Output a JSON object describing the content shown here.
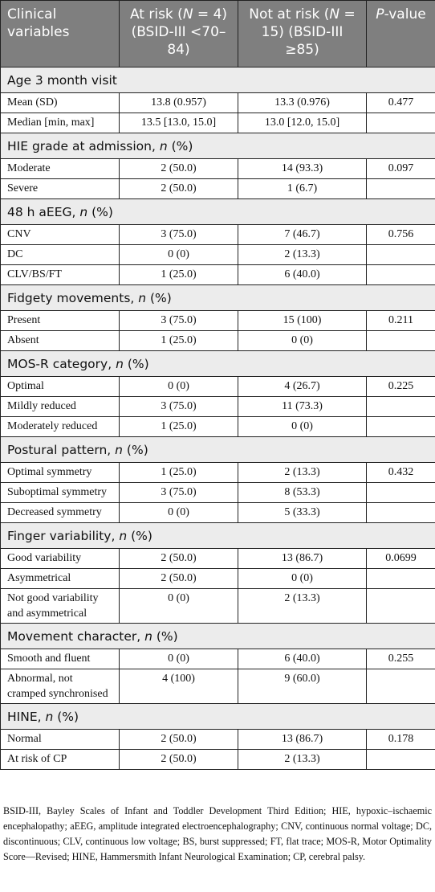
{
  "header": {
    "col1": "Clinical variables",
    "col2_pre": "At risk (",
    "col2_n": "N",
    "col2_post": " = 4) (BSID-III <70–84)",
    "col3_pre": "Not at risk (",
    "col3_n": "N",
    "col3_post": " = 15) (BSID-III ≥85)",
    "col4_p": "P",
    "col4_post": "-value"
  },
  "sections": [
    {
      "title": "Age 3 month visit",
      "n": false,
      "rows": [
        {
          "label": "Mean (SD)",
          "a": "13.8 (0.957)",
          "b": "13.3 (0.976)",
          "p": "0.477"
        },
        {
          "label": "Median [min, max]",
          "a": "13.5 [13.0, 15.0]",
          "b": "13.0 [12.0, 15.0]",
          "p": ""
        }
      ]
    },
    {
      "title": "HIE grade at admission, ",
      "n": true,
      "rows": [
        {
          "label": "Moderate",
          "a": "2 (50.0)",
          "b": "14 (93.3)",
          "p": "0.097"
        },
        {
          "label": "Severe",
          "a": "2 (50.0)",
          "b": "1 (6.7)",
          "p": ""
        }
      ]
    },
    {
      "title": "48 h aEEG, ",
      "n": true,
      "rows": [
        {
          "label": "CNV",
          "a": "3 (75.0)",
          "b": "7 (46.7)",
          "p": "0.756"
        },
        {
          "label": "DC",
          "a": "0 (0)",
          "b": "2 (13.3)",
          "p": ""
        },
        {
          "label": "CLV/BS/FT",
          "a": "1 (25.0)",
          "b": "6 (40.0)",
          "p": ""
        }
      ]
    },
    {
      "title": "Fidgety movements, ",
      "n": true,
      "rows": [
        {
          "label": "Present",
          "a": "3 (75.0)",
          "b": "15 (100)",
          "p": "0.211"
        },
        {
          "label": "Absent",
          "a": "1 (25.0)",
          "b": "0 (0)",
          "p": ""
        }
      ]
    },
    {
      "title": "MOS-R category, ",
      "n": true,
      "rows": [
        {
          "label": "Optimal",
          "a": "0 (0)",
          "b": "4 (26.7)",
          "p": "0.225"
        },
        {
          "label": "Mildly reduced",
          "a": "3 (75.0)",
          "b": "11 (73.3)",
          "p": ""
        },
        {
          "label": "Moderately reduced",
          "a": "1 (25.0)",
          "b": "0 (0)",
          "p": ""
        }
      ]
    },
    {
      "title": "Postural pattern, ",
      "n": true,
      "rows": [
        {
          "label": "Optimal symmetry",
          "a": "1 (25.0)",
          "b": "2 (13.3)",
          "p": "0.432"
        },
        {
          "label": "Suboptimal symmetry",
          "a": "3 (75.0)",
          "b": "8 (53.3)",
          "p": ""
        },
        {
          "label": "Decreased symmetry",
          "a": "0 (0)",
          "b": "5 (33.3)",
          "p": ""
        }
      ]
    },
    {
      "title": "Finger variability, ",
      "n": true,
      "rows": [
        {
          "label": "Good variability",
          "a": "2 (50.0)",
          "b": "13 (86.7)",
          "p": "0.0699"
        },
        {
          "label": "Asymmetrical",
          "a": "2 (50.0)",
          "b": "0 (0)",
          "p": ""
        },
        {
          "label": "Not good variability and asymmetrical",
          "a": "0 (0)",
          "b": "2 (13.3)",
          "p": ""
        }
      ]
    },
    {
      "title": "Movement character, ",
      "n": true,
      "rows": [
        {
          "label": "Smooth and fluent",
          "a": "0 (0)",
          "b": "6 (40.0)",
          "p": "0.255"
        },
        {
          "label": "Abnormal, not cramped synchronised",
          "a": "4 (100)",
          "b": "9 (60.0)",
          "p": ""
        }
      ]
    },
    {
      "title": "HINE, ",
      "n": true,
      "rows": [
        {
          "label": "Normal",
          "a": "2 (50.0)",
          "b": "13 (86.7)",
          "p": "0.178"
        },
        {
          "label": "At risk of CP",
          "a": "2 (50.0)",
          "b": "2 (13.3)",
          "p": ""
        }
      ]
    }
  ],
  "n_symbol": "n",
  "pct_suffix": " (%)",
  "footnote": "BSID-III, Bayley Scales of Infant and Toddler Development Third Edition; HIE, hypoxic–ischaemic encephalopathy; aEEG, amplitude integrated electroencephalography; CNV, continuous normal voltage; DC, discontinuous; CLV, continuous low voltage; BS, burst suppressed; FT, flat trace; MOS-R, Motor Optimality Score—Revised; HINE, Hammersmith Infant Neurological Examination; CP, cerebral palsy."
}
